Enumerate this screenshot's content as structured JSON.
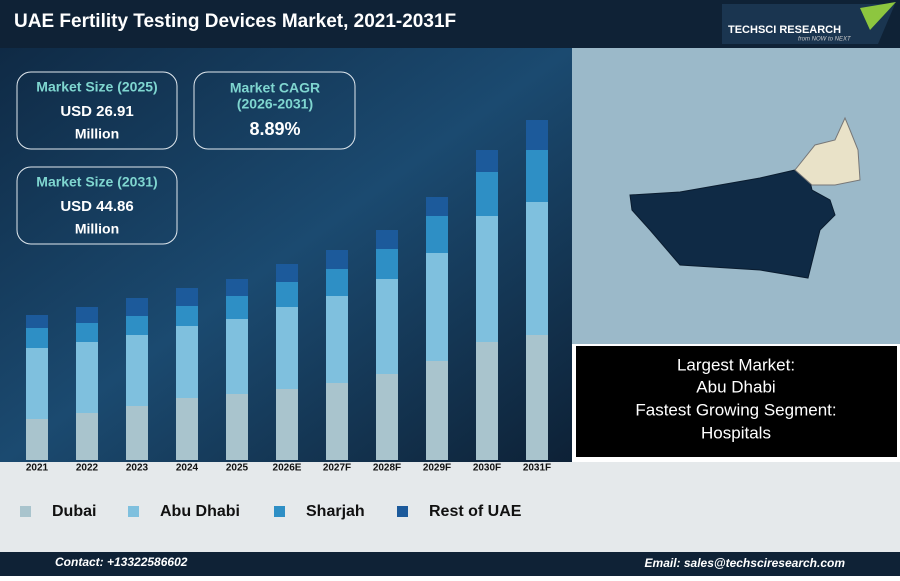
{
  "header": {
    "title": "UAE Fertility Testing Devices Market, 2021-2031F"
  },
  "logo": {
    "name": "TECHSCI RESEARCH",
    "tagline": "from NOW to NEXT"
  },
  "cards": [
    {
      "title": "Market Size (2025)",
      "value": "USD 26.91",
      "unit": "Million"
    },
    {
      "title": "Market CAGR",
      "subtitle": "(2026-2031)",
      "value": "8.89%"
    },
    {
      "title": "Market Size (2031)",
      "value": "USD 44.86",
      "unit": "Million"
    }
  ],
  "info_box": {
    "lines": [
      "Largest Market:",
      "Abu Dhabi",
      "Fastest Growing Segment:",
      "Hospitals"
    ]
  },
  "footer": {
    "contact": "Contact: +13322586602",
    "email": "Email: sales@techsciresearch.com"
  },
  "chart_data": {
    "type": "stacked_bar",
    "categories": [
      "2021",
      "2022",
      "2023",
      "2024",
      "2025",
      "2026E",
      "2027F",
      "2028F",
      "2029F",
      "2030F",
      "2031F"
    ],
    "series": [
      {
        "name": "Dubai",
        "color": "#a9c4cd",
        "values": [
          41,
          47,
          54,
          62,
          66,
          71,
          77,
          86,
          99,
          118,
          125
        ]
      },
      {
        "name": "Abu Dhabi",
        "color": "#7fc0de",
        "values": [
          71,
          71,
          71,
          72,
          75,
          82,
          87,
          95,
          108,
          126,
          133
        ]
      },
      {
        "name": "Sharjah",
        "color": "#2e8fc5",
        "values": [
          20,
          19,
          19,
          20,
          23,
          25,
          27,
          30,
          37,
          44,
          52
        ]
      },
      {
        "name": "Rest of UAE",
        "color": "#1c5a9b",
        "values": [
          13,
          16,
          18,
          18,
          17,
          18,
          19,
          19,
          19,
          22,
          30
        ]
      }
    ],
    "ylim": [
      0,
      340
    ]
  }
}
